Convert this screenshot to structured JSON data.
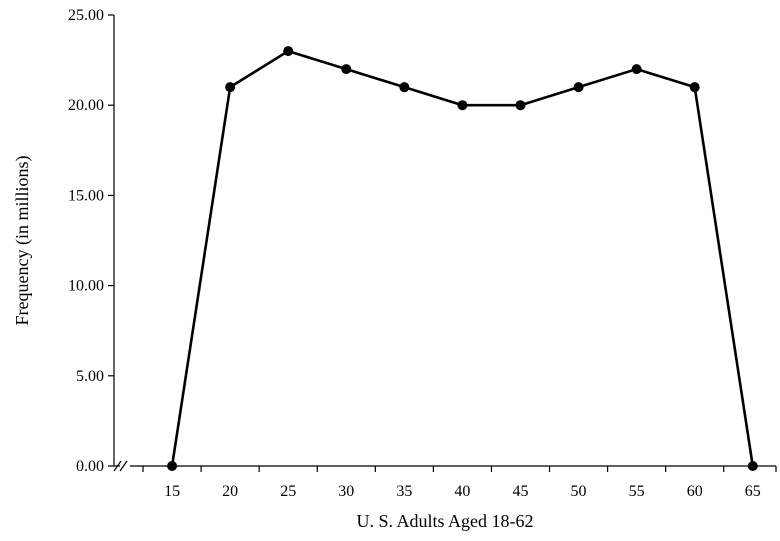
{
  "chart_data": {
    "type": "line",
    "xlabel": "U. S. Adults Aged 18-62",
    "ylabel": "Frequency (in millions)",
    "x": [
      15,
      20,
      25,
      30,
      35,
      40,
      45,
      50,
      55,
      60,
      65
    ],
    "series": [
      {
        "values": [
          0,
          21,
          23,
          22,
          21,
          20,
          20,
          21,
          22,
          21,
          0
        ]
      }
    ],
    "xticks": [
      "15",
      "20",
      "25",
      "30",
      "35",
      "40",
      "45",
      "50",
      "55",
      "60",
      "65"
    ],
    "yticks": [
      "0.00",
      "5.00",
      "10.00",
      "15.00",
      "20.00",
      "25.00"
    ],
    "xlim": [
      10,
      67
    ],
    "ylim": [
      0,
      25
    ],
    "axis_break": true,
    "grid": false,
    "colors": {
      "line": "#000000",
      "marker": "#000000",
      "axis": "#000000"
    }
  }
}
